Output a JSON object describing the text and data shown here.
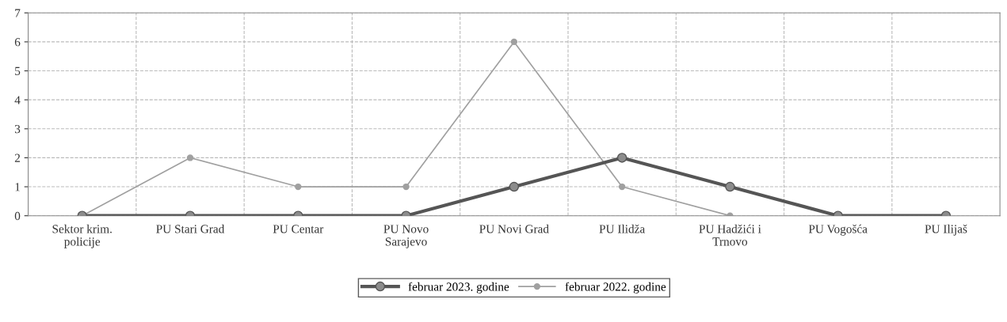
{
  "chart_data": {
    "type": "line",
    "categories": [
      "Sektor krim.\npolicije",
      "PU Stari Grad",
      "PU Centar",
      "PU Novo\nSarajevo",
      "PU Novi Grad",
      "PU Ilidža",
      "PU Hadžići i\nTrnovo",
      "PU Vogošća",
      "PU Ilijaš"
    ],
    "series": [
      {
        "name": "februar 2023. godine",
        "color": "#555555",
        "values": [
          0,
          0,
          0,
          0,
          1,
          2,
          1,
          0,
          0
        ]
      },
      {
        "name": "februar 2022. godine",
        "color": "#a0a0a0",
        "values": [
          0,
          2,
          1,
          1,
          6,
          1,
          0,
          null,
          null
        ]
      }
    ],
    "ylim": [
      0,
      7
    ],
    "yticks": [
      0,
      1,
      2,
      3,
      4,
      5,
      6,
      7
    ],
    "grid": true,
    "legend": "bottom",
    "marker": "circle",
    "line_style": "solid"
  }
}
